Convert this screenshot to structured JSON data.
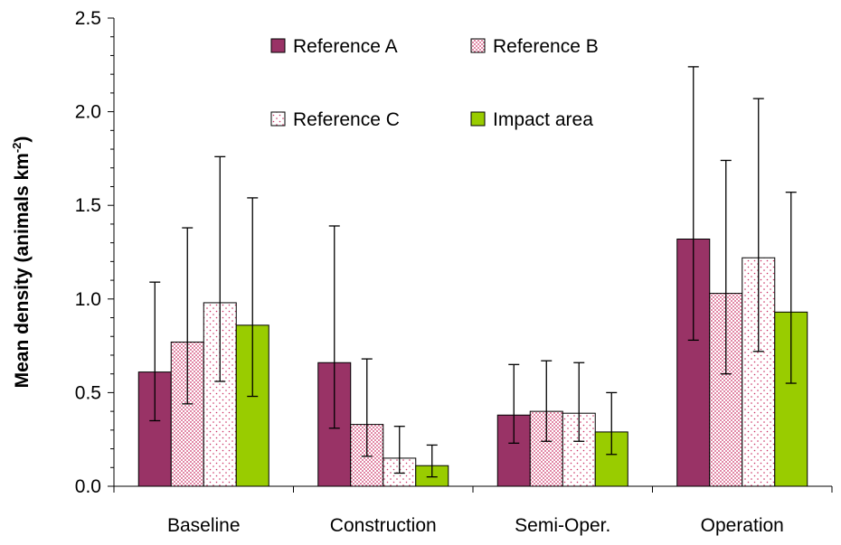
{
  "chart_data": {
    "type": "bar",
    "title": "",
    "xlabel": "",
    "ylabel": "Mean density (animals km",
    "ylabel_superscript": "-2",
    "ylabel_suffix": ")",
    "ylim": [
      0,
      2.5
    ],
    "yticks": [
      "0.0",
      "0.5",
      "1.0",
      "1.5",
      "2.0",
      "2.5"
    ],
    "categories": [
      "Baseline",
      "Construction",
      "Semi-Oper.",
      "Operation"
    ],
    "legend_position": "top-center",
    "series": [
      {
        "name": "Reference A",
        "color": "#993366",
        "pattern": "solid",
        "values": [
          0.61,
          0.66,
          0.38,
          1.32
        ],
        "error_low": [
          0.35,
          0.31,
          0.23,
          0.78
        ],
        "error_high": [
          1.09,
          1.39,
          0.65,
          2.24
        ]
      },
      {
        "name": "Reference B",
        "color": "#cc3366",
        "pattern": "dense-dots",
        "values": [
          0.77,
          0.33,
          0.4,
          1.03
        ],
        "error_low": [
          0.44,
          0.16,
          0.24,
          0.6
        ],
        "error_high": [
          1.38,
          0.68,
          0.67,
          1.74
        ]
      },
      {
        "name": "Reference C",
        "color": "#cc3366",
        "pattern": "sparse-dots",
        "values": [
          0.98,
          0.15,
          0.39,
          1.22
        ],
        "error_low": [
          0.56,
          0.07,
          0.24,
          0.72
        ],
        "error_high": [
          1.76,
          0.32,
          0.66,
          2.07
        ]
      },
      {
        "name": "Impact area",
        "color": "#99cc00",
        "pattern": "solid",
        "values": [
          0.86,
          0.11,
          0.29,
          0.93
        ],
        "error_low": [
          0.48,
          0.05,
          0.17,
          0.55
        ],
        "error_high": [
          1.54,
          0.22,
          0.5,
          1.57
        ]
      }
    ]
  }
}
